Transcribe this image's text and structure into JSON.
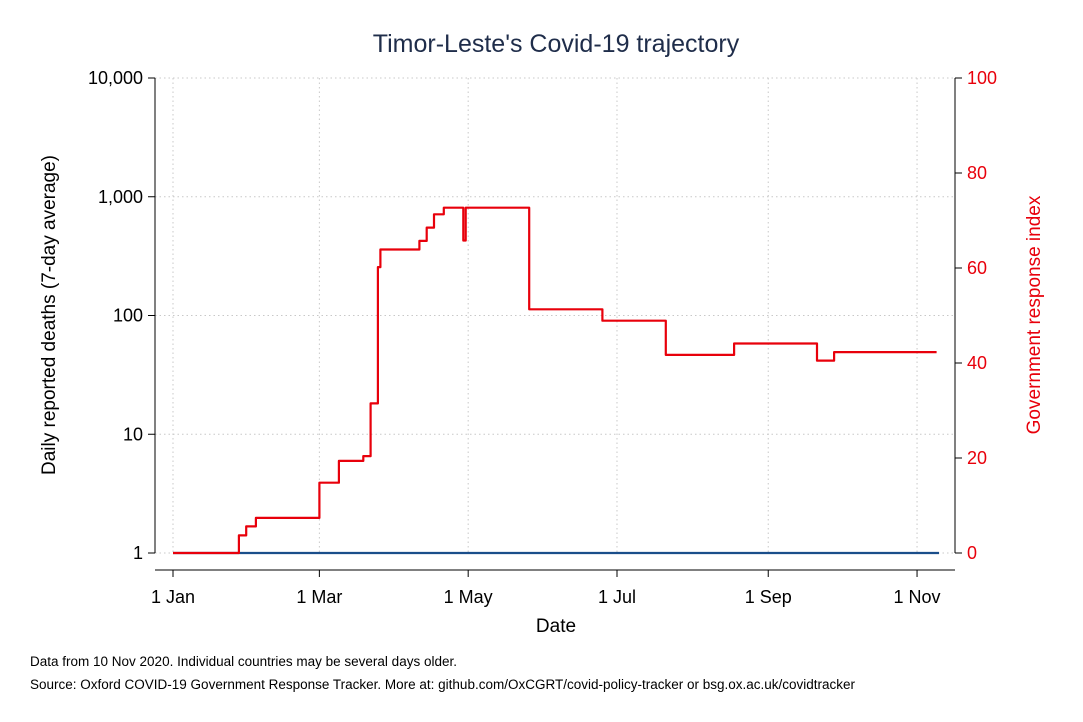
{
  "chart_data": {
    "type": "line",
    "title": "Timor-Leste's Covid-19 trajectory",
    "xlabel": "Date",
    "ylabel_left": "Daily reported deaths (7-day average)",
    "ylabel_right": "Government response index",
    "x_ticks": [
      "1 Jan",
      "1 Mar",
      "1 May",
      "1 Jul",
      "1 Sep",
      "1 Nov"
    ],
    "x_tick_days": [
      0,
      60,
      121,
      182,
      244,
      305
    ],
    "y_left_scale": "log",
    "y_left_ticks": [
      1,
      10,
      100,
      1000,
      10000
    ],
    "y_left_tick_labels": [
      "1",
      "10",
      "100",
      "1,000",
      "10,000"
    ],
    "y_left_range": [
      1,
      10000
    ],
    "y_right_ticks": [
      0,
      20,
      40,
      60,
      80,
      100
    ],
    "y_right_tick_labels": [
      "0",
      "20",
      "40",
      "60",
      "80",
      "100"
    ],
    "y_right_range": [
      0,
      100
    ],
    "x_range": [
      0,
      314
    ],
    "grid": true,
    "series": [
      {
        "name": "Daily reported deaths (7-day average)",
        "axis": "left",
        "color": "#1a4e8a",
        "step": false,
        "points": [
          [
            0,
            1
          ],
          [
            314,
            1
          ]
        ]
      },
      {
        "name": "Government response index",
        "axis": "right",
        "color": "#e8000b",
        "step": true,
        "points": [
          [
            0,
            0
          ],
          [
            27,
            3.7
          ],
          [
            30,
            5.6
          ],
          [
            34,
            7.4
          ],
          [
            60,
            14.8
          ],
          [
            68,
            19.4
          ],
          [
            78,
            20.4
          ],
          [
            81,
            31.5
          ],
          [
            84,
            60.2
          ],
          [
            85,
            63.9
          ],
          [
            101,
            65.7
          ],
          [
            104,
            68.5
          ],
          [
            107,
            71.3
          ],
          [
            111,
            72.7
          ],
          [
            119,
            65.8
          ],
          [
            120,
            72.7
          ],
          [
            146,
            51.3
          ],
          [
            176,
            48.9
          ],
          [
            202,
            41.7
          ],
          [
            230,
            44.1
          ],
          [
            264,
            40.5
          ],
          [
            271,
            42.3
          ],
          [
            313,
            42.3
          ]
        ]
      }
    ]
  },
  "notes": {
    "line1": "Data from 10 Nov 2020. Individual countries may be several days older.",
    "line2": "Source: Oxford COVID-19 Government Response Tracker. More at: github.com/OxCGRT/covid-policy-tracker or bsg.ox.ac.uk/covidtracker"
  },
  "colors": {
    "deaths": "#1a4e8a",
    "response": "#e8000b",
    "title": "#1f2d4a"
  }
}
